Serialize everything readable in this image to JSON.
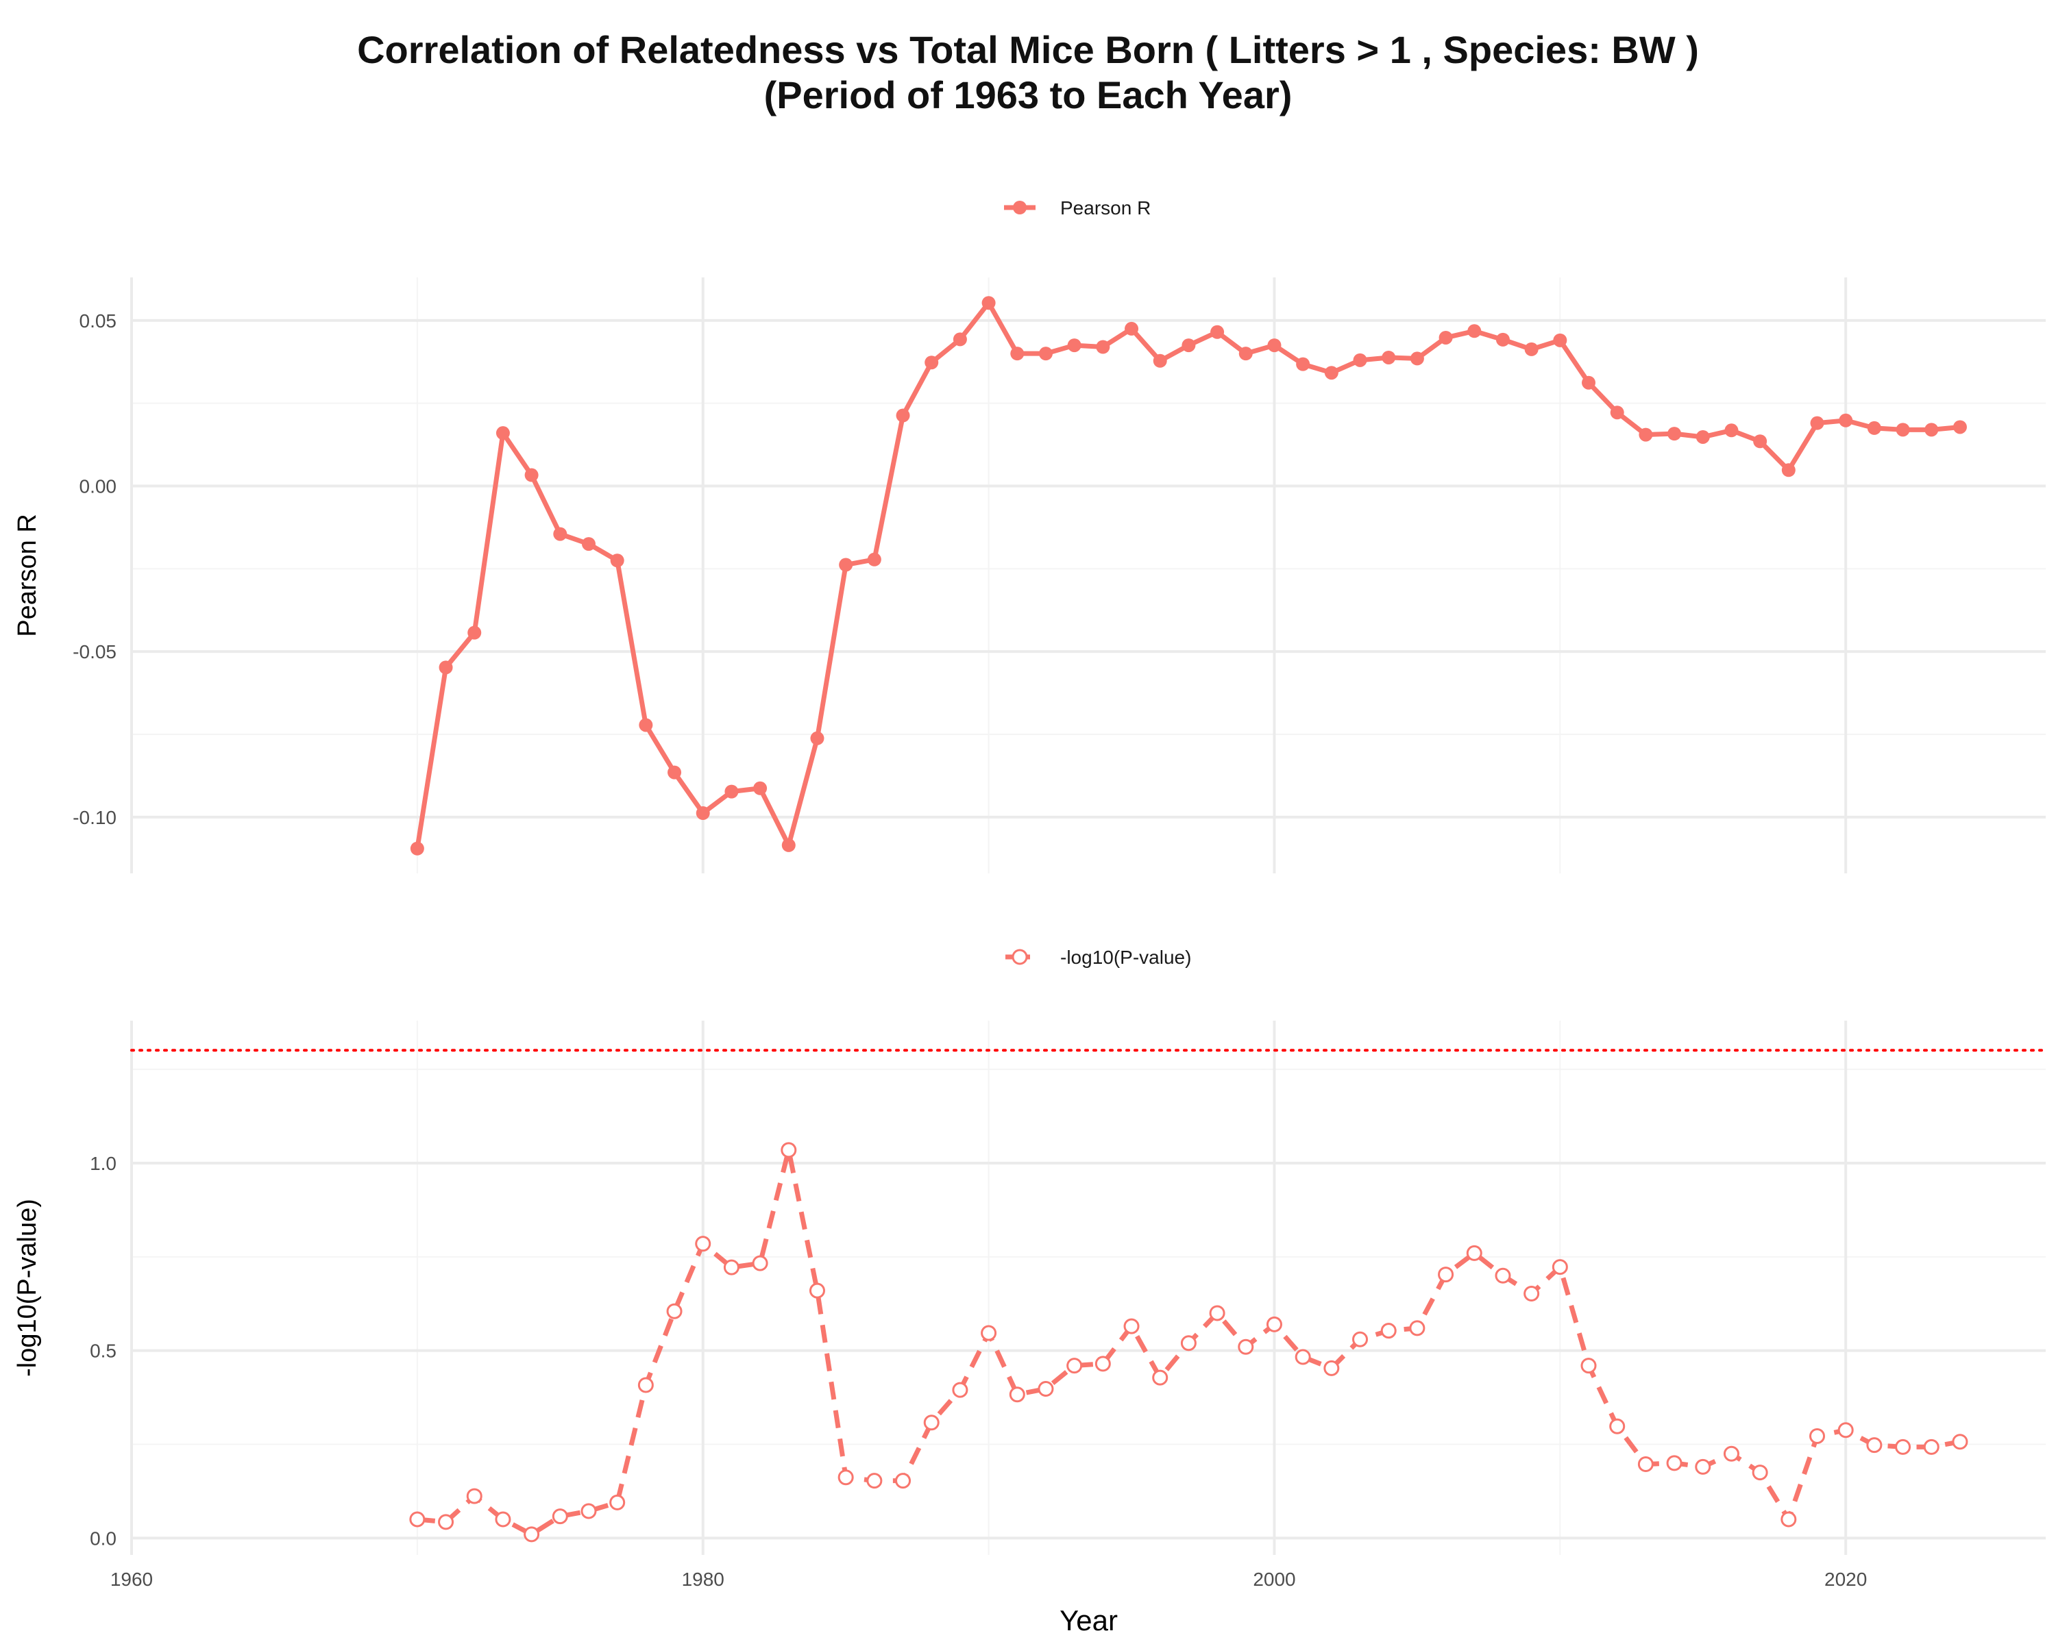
{
  "title_line1": "Correlation of Relatedness vs Total Mice Born ( Litters > 1 , Species: BW )",
  "title_line2": "(Period of 1963 to Each Year)",
  "colors": {
    "series": "#F8766D",
    "threshold": "#FF0000",
    "grid_major": "#EBEBEB",
    "grid_minor": "#F4F4F4",
    "text": "#4D4D4D"
  },
  "chart_data": [
    {
      "type": "line",
      "legend_label": "Pearson R",
      "legend_position": "top",
      "ylabel": "Pearson R",
      "xlim": [
        1960,
        2027
      ],
      "ylim": [
        -0.117,
        0.063
      ],
      "y_ticks": [
        -0.1,
        -0.05,
        0.0,
        0.05
      ],
      "y_tick_labels": [
        "-0.10",
        "-0.05",
        "0.00",
        "0.05"
      ],
      "x_ticks": [
        1960,
        1980,
        2000,
        2020
      ],
      "line_style": "solid",
      "marker": "filled-circle",
      "x": [
        1970,
        1971,
        1972,
        1973,
        1974,
        1975,
        1976,
        1977,
        1978,
        1979,
        1980,
        1981,
        1982,
        1983,
        1984,
        1985,
        1986,
        1987,
        1988,
        1989,
        1990,
        1991,
        1992,
        1993,
        1994,
        1995,
        1996,
        1997,
        1998,
        1999,
        2000,
        2001,
        2002,
        2003,
        2004,
        2005,
        2006,
        2007,
        2008,
        2009,
        2010,
        2011,
        2012,
        2013,
        2014,
        2015,
        2016,
        2017,
        2018,
        2019,
        2020,
        2021,
        2022,
        2023,
        2024
      ],
      "y": [
        -0.1095,
        -0.0548,
        -0.0443,
        0.016,
        0.0033,
        -0.0145,
        -0.0175,
        -0.0225,
        -0.0722,
        -0.0865,
        -0.0988,
        -0.0923,
        -0.0913,
        -0.1085,
        -0.0762,
        -0.0238,
        -0.0222,
        0.0213,
        0.0373,
        0.0443,
        0.0553,
        0.04,
        0.04,
        0.0425,
        0.042,
        0.0475,
        0.0378,
        0.0425,
        0.0465,
        0.04,
        0.0425,
        0.0368,
        0.0342,
        0.038,
        0.0388,
        0.0385,
        0.0448,
        0.0468,
        0.0442,
        0.0413,
        0.044,
        0.0312,
        0.0222,
        0.0155,
        0.0158,
        0.0148,
        0.0168,
        0.0135,
        0.0048,
        0.019,
        0.0198,
        0.0175,
        0.017,
        0.017,
        0.0178
      ]
    },
    {
      "type": "line",
      "legend_label": "-log10(P-value)",
      "legend_position": "top",
      "xlabel": "Year",
      "ylabel": "-log10(P-value)",
      "xlim": [
        1960,
        2027
      ],
      "ylim": [
        -0.045,
        1.38
      ],
      "y_ticks": [
        0.0,
        0.5,
        1.0
      ],
      "y_tick_labels": [
        "0.0",
        "0.5",
        "1.0"
      ],
      "x_ticks": [
        1960,
        1980,
        2000,
        2020
      ],
      "x_tick_labels": [
        "1960",
        "1980",
        "2000",
        "2020"
      ],
      "threshold_line": 1.301,
      "line_style": "dashed",
      "marker": "open-circle",
      "x": [
        1970,
        1971,
        1972,
        1973,
        1974,
        1975,
        1976,
        1977,
        1978,
        1979,
        1980,
        1981,
        1982,
        1983,
        1984,
        1985,
        1986,
        1987,
        1988,
        1989,
        1990,
        1991,
        1992,
        1993,
        1994,
        1995,
        1996,
        1997,
        1998,
        1999,
        2000,
        2001,
        2002,
        2003,
        2004,
        2005,
        2006,
        2007,
        2008,
        2009,
        2010,
        2011,
        2012,
        2013,
        2014,
        2015,
        2016,
        2017,
        2018,
        2019,
        2020,
        2021,
        2022,
        2023,
        2024
      ],
      "y": [
        0.05,
        0.043,
        0.112,
        0.05,
        0.01,
        0.058,
        0.072,
        0.095,
        0.408,
        0.605,
        0.785,
        0.722,
        0.733,
        1.035,
        0.66,
        0.162,
        0.153,
        0.153,
        0.308,
        0.395,
        0.547,
        0.383,
        0.398,
        0.46,
        0.465,
        0.565,
        0.428,
        0.52,
        0.6,
        0.51,
        0.57,
        0.483,
        0.453,
        0.53,
        0.553,
        0.56,
        0.703,
        0.76,
        0.7,
        0.652,
        0.723,
        0.46,
        0.298,
        0.197,
        0.2,
        0.19,
        0.225,
        0.175,
        0.05,
        0.272,
        0.288,
        0.248,
        0.243,
        0.243,
        0.257
      ]
    }
  ]
}
